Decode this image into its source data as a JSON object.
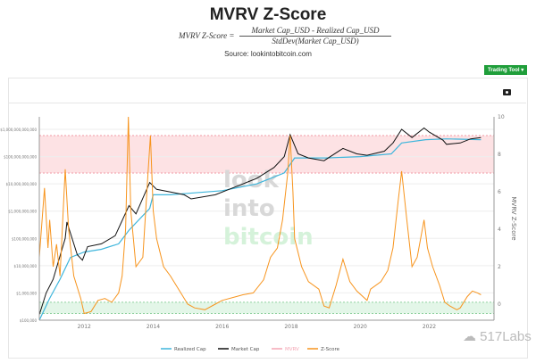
{
  "header": {
    "title": "MVRV Z-Score",
    "formula_lhs": "MVRV Z-Score =",
    "formula_num": "Market Cap_USD - Realized Cap_USD",
    "formula_den": "StdDev(Market Cap_USD)",
    "source": "Source: lookintobitcoin.com",
    "trading_tool": "Trading Tool ▾"
  },
  "watermark": "517Labs",
  "logo_text": [
    "look",
    "into",
    "bitcoin"
  ],
  "chart_data": {
    "type": "line",
    "title": "MVRV Z-Score",
    "ylabel_right": "MVRV Z-Score",
    "left_axis": {
      "scale": "log",
      "ticks": [
        "$1,000,000,000,000",
        "$100,000,000,000",
        "$10,000,000,000",
        "$1,000,000,000",
        "$100,000,000",
        "$10,000,000",
        "$1,000,000",
        "$100,000"
      ]
    },
    "right_axis": {
      "range": [
        -0.9,
        10
      ],
      "ticks": [
        "10",
        "8",
        "6",
        "4",
        "2",
        "0"
      ]
    },
    "x_ticks": [
      "2012",
      "2014",
      "2016",
      "2018",
      "2020",
      "2022"
    ],
    "x_range": [
      2010.7,
      2023.8
    ],
    "bands": [
      {
        "name": "top zone",
        "z": [
          7,
          9
        ],
        "color": "#fde2e4"
      },
      {
        "name": "bottom zone",
        "z": [
          -0.5,
          0.1
        ],
        "color": "#e3f6e8"
      }
    ],
    "legend": [
      "Realized Cap",
      "Market Cap",
      "MVRV",
      "Z-Score"
    ],
    "colors": {
      "Realized Cap": "#3fb6dc",
      "Market Cap": "#111111",
      "MVRV": "#f4a6b4",
      "Z-Score": "#f7941d"
    },
    "series": [
      {
        "name": "Z-Score",
        "axis": "right",
        "points": [
          [
            2010.7,
            2.5
          ],
          [
            2010.85,
            6.2
          ],
          [
            2010.95,
            3
          ],
          [
            2011.0,
            4.5
          ],
          [
            2011.1,
            2
          ],
          [
            2011.2,
            3.2
          ],
          [
            2011.3,
            1.5
          ],
          [
            2011.45,
            7.2
          ],
          [
            2011.55,
            4
          ],
          [
            2011.7,
            1.5
          ],
          [
            2011.9,
            0.3
          ],
          [
            2012.0,
            -0.5
          ],
          [
            2012.2,
            -0.4
          ],
          [
            2012.4,
            0.2
          ],
          [
            2012.6,
            0.3
          ],
          [
            2012.8,
            0.1
          ],
          [
            2013.0,
            0.6
          ],
          [
            2013.1,
            1.5
          ],
          [
            2013.2,
            4
          ],
          [
            2013.28,
            10
          ],
          [
            2013.35,
            5
          ],
          [
            2013.5,
            2
          ],
          [
            2013.7,
            2.5
          ],
          [
            2013.85,
            7
          ],
          [
            2013.92,
            9
          ],
          [
            2014.0,
            5
          ],
          [
            2014.1,
            3.5
          ],
          [
            2014.3,
            2
          ],
          [
            2014.5,
            1.5
          ],
          [
            2014.8,
            0.6
          ],
          [
            2015.0,
            0
          ],
          [
            2015.2,
            -0.2
          ],
          [
            2015.5,
            -0.3
          ],
          [
            2015.8,
            0
          ],
          [
            2016.0,
            0.2
          ],
          [
            2016.4,
            0.4
          ],
          [
            2016.6,
            0.5
          ],
          [
            2016.9,
            0.6
          ],
          [
            2017.2,
            1.3
          ],
          [
            2017.4,
            2.5
          ],
          [
            2017.6,
            3
          ],
          [
            2017.75,
            4.5
          ],
          [
            2017.9,
            7
          ],
          [
            2017.97,
            9
          ],
          [
            2018.05,
            6
          ],
          [
            2018.1,
            3.5
          ],
          [
            2018.3,
            2
          ],
          [
            2018.5,
            1.2
          ],
          [
            2018.8,
            0.8
          ],
          [
            2018.95,
            -0.1
          ],
          [
            2019.1,
            -0.2
          ],
          [
            2019.3,
            1
          ],
          [
            2019.5,
            2.4
          ],
          [
            2019.7,
            1.2
          ],
          [
            2019.9,
            0.7
          ],
          [
            2020.2,
            0.2
          ],
          [
            2020.3,
            0.8
          ],
          [
            2020.6,
            1.2
          ],
          [
            2020.8,
            1.8
          ],
          [
            2020.95,
            3
          ],
          [
            2021.1,
            5.5
          ],
          [
            2021.2,
            7.1
          ],
          [
            2021.35,
            4.5
          ],
          [
            2021.5,
            2
          ],
          [
            2021.65,
            2.5
          ],
          [
            2021.85,
            4.5
          ],
          [
            2021.95,
            3
          ],
          [
            2022.1,
            2
          ],
          [
            2022.3,
            1
          ],
          [
            2022.45,
            0.1
          ],
          [
            2022.6,
            -0.1
          ],
          [
            2022.8,
            -0.3
          ],
          [
            2022.9,
            -0.2
          ],
          [
            2023.1,
            0.4
          ],
          [
            2023.25,
            0.7
          ],
          [
            2023.4,
            0.6
          ],
          [
            2023.5,
            0.5
          ]
        ]
      },
      {
        "name": "Market Cap",
        "axis": "left_log10",
        "points": [
          [
            2010.7,
            5.2
          ],
          [
            2010.9,
            6
          ],
          [
            2011.1,
            6.5
          ],
          [
            2011.45,
            8
          ],
          [
            2011.5,
            8.6
          ],
          [
            2011.8,
            7.4
          ],
          [
            2011.95,
            7.2
          ],
          [
            2012.1,
            7.7
          ],
          [
            2012.5,
            7.8
          ],
          [
            2012.9,
            8.1
          ],
          [
            2013.3,
            9.2
          ],
          [
            2013.5,
            8.9
          ],
          [
            2013.9,
            10.05
          ],
          [
            2014.1,
            9.8
          ],
          [
            2014.5,
            9.7
          ],
          [
            2014.9,
            9.6
          ],
          [
            2015.1,
            9.45
          ],
          [
            2015.8,
            9.6
          ],
          [
            2016.2,
            9.8
          ],
          [
            2016.6,
            10.0
          ],
          [
            2017.0,
            10.2
          ],
          [
            2017.5,
            10.6
          ],
          [
            2017.8,
            11
          ],
          [
            2017.97,
            11.8
          ],
          [
            2018.2,
            11.1
          ],
          [
            2018.5,
            10.95
          ],
          [
            2018.95,
            10.85
          ],
          [
            2019.5,
            11.3
          ],
          [
            2019.9,
            11.1
          ],
          [
            2020.2,
            11.05
          ],
          [
            2020.7,
            11.2
          ],
          [
            2020.95,
            11.5
          ],
          [
            2021.2,
            12.0
          ],
          [
            2021.5,
            11.7
          ],
          [
            2021.85,
            12.05
          ],
          [
            2022.0,
            11.9
          ],
          [
            2022.4,
            11.6
          ],
          [
            2022.5,
            11.45
          ],
          [
            2022.9,
            11.5
          ],
          [
            2023.2,
            11.65
          ],
          [
            2023.5,
            11.7
          ]
        ]
      },
      {
        "name": "Realized Cap",
        "axis": "left_log10",
        "points": [
          [
            2010.7,
            5.0
          ],
          [
            2011.0,
            5.8
          ],
          [
            2011.3,
            6.5
          ],
          [
            2011.6,
            7.3
          ],
          [
            2012.0,
            7.5
          ],
          [
            2012.5,
            7.6
          ],
          [
            2013.0,
            7.8
          ],
          [
            2013.3,
            8.3
          ],
          [
            2013.9,
            9.1
          ],
          [
            2014.0,
            9.6
          ],
          [
            2014.5,
            9.6
          ],
          [
            2015.0,
            9.65
          ],
          [
            2016.0,
            9.75
          ],
          [
            2017.0,
            10.0
          ],
          [
            2017.8,
            10.4
          ],
          [
            2018.1,
            10.95
          ],
          [
            2019.0,
            10.95
          ],
          [
            2020.0,
            11.0
          ],
          [
            2020.9,
            11.1
          ],
          [
            2021.2,
            11.5
          ],
          [
            2021.9,
            11.62
          ],
          [
            2022.5,
            11.65
          ],
          [
            2023.5,
            11.62
          ]
        ]
      }
    ]
  }
}
